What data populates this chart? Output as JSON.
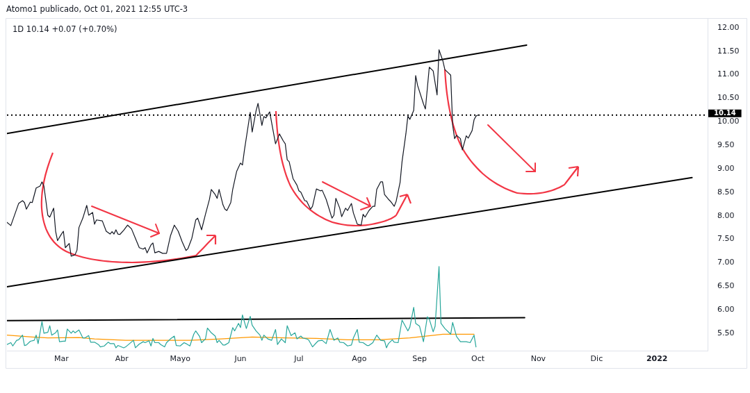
{
  "chart_data": {
    "type": "line",
    "title": "1D 10.14 +0.07 (+0.70%)",
    "annotations": [
      "Atomo1 publicado, Oct 01, 2021 12:55 UTC-3"
    ],
    "xlim": [
      "2021-02-01",
      "2022-01-27"
    ],
    "xticks": [
      {
        "value": "2021-03",
        "label": "Mar"
      },
      {
        "value": "2021-04",
        "label": "Abr"
      },
      {
        "value": "2021-05",
        "label": "Mayo"
      },
      {
        "value": "2021-06",
        "label": "Jun"
      },
      {
        "value": "2021-07",
        "label": "Jul"
      },
      {
        "value": "2021-08",
        "label": "Ago"
      },
      {
        "value": "2021-09",
        "label": "Sep"
      },
      {
        "value": "2021-10",
        "label": "Oct"
      },
      {
        "value": "2021-11",
        "label": "Nov"
      },
      {
        "value": "2021-12",
        "label": "Dic"
      },
      {
        "value": "2022-01",
        "label": "2022"
      }
    ],
    "ylim": [
      5.13,
      12.19
    ],
    "yticks": [
      {
        "value": 5.5,
        "label": "5.50"
      },
      {
        "value": 6,
        "label": "6.00"
      },
      {
        "value": 6.5,
        "label": "6.50"
      },
      {
        "value": 7,
        "label": "7.00"
      },
      {
        "value": 7.5,
        "label": "7.50"
      },
      {
        "value": 8,
        "label": "8.00"
      },
      {
        "value": 8.5,
        "label": "8.50"
      },
      {
        "value": 9,
        "label": "9.00"
      },
      {
        "value": 9.5,
        "label": "9.50"
      },
      {
        "value": 10,
        "label": "10.00"
      },
      {
        "value": 10.5,
        "label": "10.50"
      },
      {
        "value": 11,
        "label": "11.00"
      },
      {
        "value": 11.5,
        "label": "11.50"
      },
      {
        "value": 12,
        "label": "12.00"
      }
    ],
    "grid": false,
    "marker": "none",
    "ref_lines": [
      {
        "axis": "y",
        "value": 10.14,
        "label": "10.14",
        "color": "#000000",
        "line_style": "dotted"
      }
    ],
    "series": [
      {
        "color": "#26a69a",
        "x": [
          "2021-02-01",
          "2021-02-03",
          "2021-02-04",
          "2021-02-06",
          "2021-02-07",
          "2021-02-09",
          "2021-02-10",
          "2021-02-11",
          "2021-02-13",
          "2021-02-15",
          "2021-02-16",
          "2021-02-17",
          "2021-02-19",
          "2021-02-20",
          "2021-02-22",
          "2021-02-23",
          "2021-02-24",
          "2021-02-26",
          "2021-02-27",
          "2021-02-28",
          "2021-03-02",
          "2021-03-03",
          "2021-03-04",
          "2021-03-06",
          "2021-03-07",
          "2021-03-08",
          "2021-03-10",
          "2021-03-12",
          "2021-03-13",
          "2021-03-15",
          "2021-03-16",
          "2021-03-18",
          "2021-03-20",
          "2021-03-21",
          "2021-03-23",
          "2021-03-25",
          "2021-03-26",
          "2021-03-28",
          "2021-03-29",
          "2021-03-30",
          "2021-04-02",
          "2021-04-03",
          "2021-04-05",
          "2021-04-07",
          "2021-04-08",
          "2021-04-10",
          "2021-04-12",
          "2021-04-13",
          "2021-04-15",
          "2021-04-16",
          "2021-04-17",
          "2021-04-18",
          "2021-04-20",
          "2021-04-21",
          "2021-04-23",
          "2021-04-24",
          "2021-04-26",
          "2021-04-28",
          "2021-04-29",
          "2021-05-01",
          "2021-05-03",
          "2021-05-04",
          "2021-05-06",
          "2021-05-08",
          "2021-05-09",
          "2021-05-11",
          "2021-05-12",
          "2021-05-14",
          "2021-05-15",
          "2021-05-17",
          "2021-05-19",
          "2021-05-20",
          "2021-05-21",
          "2021-05-23",
          "2021-05-24",
          "2021-05-26",
          "2021-05-28",
          "2021-05-29",
          "2021-05-31",
          "2021-06-01",
          "2021-06-02",
          "2021-06-04",
          "2021-06-06",
          "2021-06-07",
          "2021-06-09",
          "2021-06-11",
          "2021-06-12",
          "2021-06-13",
          "2021-06-15",
          "2021-06-17",
          "2021-06-19",
          "2021-06-20",
          "2021-06-22",
          "2021-06-24",
          "2021-06-25",
          "2021-06-27",
          "2021-06-29",
          "2021-06-30",
          "2021-07-02",
          "2021-07-03",
          "2021-07-05",
          "2021-07-06",
          "2021-07-08",
          "2021-07-10",
          "2021-07-11",
          "2021-07-13",
          "2021-07-15",
          "2021-07-17",
          "2021-07-19",
          "2021-07-21",
          "2021-07-22",
          "2021-07-24",
          "2021-07-26",
          "2021-07-28",
          "2021-07-29",
          "2021-07-31",
          "2021-08-01",
          "2021-08-03",
          "2021-08-05",
          "2021-08-06",
          "2021-08-08",
          "2021-08-10",
          "2021-08-12",
          "2021-08-14",
          "2021-08-15",
          "2021-08-16",
          "2021-08-18",
          "2021-08-19",
          "2021-08-21",
          "2021-08-23",
          "2021-08-26",
          "2021-08-27",
          "2021-08-29",
          "2021-08-30",
          "2021-09-01",
          "2021-09-03",
          "2021-09-05",
          "2021-09-06",
          "2021-09-08",
          "2021-09-09",
          "2021-09-11",
          "2021-09-12",
          "2021-09-14",
          "2021-09-17",
          "2021-09-18",
          "2021-09-20",
          "2021-09-22",
          "2021-09-25",
          "2021-09-27",
          "2021-09-29",
          "2021-09-30"
        ],
        "values": [
          5.26,
          5.3,
          5.23,
          5.35,
          5.36,
          5.46,
          5.24,
          5.25,
          5.33,
          5.35,
          5.46,
          5.28,
          5.75,
          5.5,
          5.52,
          5.66,
          5.46,
          5.51,
          5.57,
          5.32,
          5.33,
          5.33,
          5.59,
          5.5,
          5.55,
          5.51,
          5.57,
          5.4,
          5.4,
          5.45,
          5.31,
          5.31,
          5.26,
          5.21,
          5.23,
          5.31,
          5.28,
          5.28,
          5.19,
          5.24,
          5.19,
          5.21,
          5.28,
          5.35,
          5.19,
          5.27,
          5.32,
          5.3,
          5.34,
          5.23,
          5.39,
          5.3,
          5.3,
          5.26,
          5.21,
          5.3,
          5.38,
          5.44,
          5.24,
          5.23,
          5.3,
          5.28,
          5.23,
          5.48,
          5.55,
          5.43,
          5.3,
          5.38,
          5.61,
          5.51,
          5.44,
          5.3,
          5.35,
          5.25,
          5.25,
          5.3,
          5.62,
          5.55,
          5.71,
          5.62,
          5.89,
          5.6,
          5.86,
          5.67,
          5.55,
          5.46,
          5.35,
          5.46,
          5.38,
          5.35,
          5.58,
          5.26,
          5.38,
          5.3,
          5.66,
          5.45,
          5.51,
          5.38,
          5.44,
          5.4,
          5.38,
          5.36,
          5.21,
          5.3,
          5.34,
          5.35,
          5.28,
          5.58,
          5.35,
          5.4,
          5.31,
          5.3,
          5.23,
          5.25,
          5.4,
          5.58,
          5.31,
          5.3,
          5.24,
          5.24,
          5.3,
          5.46,
          5.35,
          5.34,
          5.19,
          5.28,
          5.36,
          5.31,
          5.3,
          5.78,
          5.55,
          5.63,
          6.05,
          5.71,
          5.65,
          5.32,
          5.85,
          5.8,
          5.53,
          5.65,
          6.92,
          5.71,
          5.6,
          5.48,
          5.73,
          5.43,
          5.32,
          5.32,
          5.3,
          5.46,
          5.21
        ]
      },
      {
        "color": "#ff9800",
        "x": [
          "2021-02-01",
          "2021-02-14",
          "2021-02-22",
          "2021-03-10",
          "2021-03-18",
          "2021-04-03",
          "2021-04-20",
          "2021-05-06",
          "2021-05-22",
          "2021-06-07",
          "2021-06-24",
          "2021-07-10",
          "2021-07-26",
          "2021-08-11",
          "2021-08-27",
          "2021-09-09",
          "2021-09-13",
          "2021-09-29"
        ],
        "values": [
          5.46,
          5.42,
          5.4,
          5.41,
          5.38,
          5.35,
          5.35,
          5.35,
          5.38,
          5.42,
          5.4,
          5.39,
          5.36,
          5.36,
          5.4,
          5.46,
          5.48,
          5.48
        ]
      },
      {
        "color": "#131722",
        "x": [
          "2021-02-01",
          "2021-02-03",
          "2021-02-07",
          "2021-02-09",
          "2021-02-10",
          "2021-02-11",
          "2021-02-13",
          "2021-02-14",
          "2021-02-16",
          "2021-02-18",
          "2021-02-19",
          "2021-02-20",
          "2021-02-22",
          "2021-02-23",
          "2021-02-25",
          "2021-02-26",
          "2021-02-27",
          "2021-03-01",
          "2021-03-02",
          "2021-03-03",
          "2021-03-05",
          "2021-03-06",
          "2021-03-08",
          "2021-03-09",
          "2021-03-10",
          "2021-03-12",
          "2021-03-14",
          "2021-03-15",
          "2021-03-17",
          "2021-03-18",
          "2021-03-19",
          "2021-03-22",
          "2021-03-24",
          "2021-03-26",
          "2021-03-27",
          "2021-03-28",
          "2021-03-29",
          "2021-03-30",
          "2021-03-31",
          "2021-04-02",
          "2021-04-04",
          "2021-04-06",
          "2021-04-08",
          "2021-04-10",
          "2021-04-12",
          "2021-04-13",
          "2021-04-14",
          "2021-04-16",
          "2021-04-17",
          "2021-04-18",
          "2021-04-20",
          "2021-04-22",
          "2021-04-24",
          "2021-04-26",
          "2021-04-28",
          "2021-04-30",
          "2021-05-02",
          "2021-05-04",
          "2021-05-05",
          "2021-05-07",
          "2021-05-09",
          "2021-05-10",
          "2021-05-11",
          "2021-05-12",
          "2021-05-14",
          "2021-05-16",
          "2021-05-17",
          "2021-05-19",
          "2021-05-20",
          "2021-05-21",
          "2021-05-23",
          "2021-05-24",
          "2021-05-25",
          "2021-05-27",
          "2021-05-28",
          "2021-05-30",
          "2021-06-01",
          "2021-06-02",
          "2021-06-03",
          "2021-06-05",
          "2021-06-06",
          "2021-06-07",
          "2021-06-09",
          "2021-06-10",
          "2021-06-12",
          "2021-06-13",
          "2021-06-14",
          "2021-06-16",
          "2021-06-17",
          "2021-06-19",
          "2021-06-21",
          "2021-06-23",
          "2021-06-24",
          "2021-06-25",
          "2021-06-26",
          "2021-06-28",
          "2021-06-30",
          "2021-07-01",
          "2021-07-02",
          "2021-07-04",
          "2021-07-05",
          "2021-07-07",
          "2021-07-08",
          "2021-07-10",
          "2021-07-12",
          "2021-07-13",
          "2021-07-15",
          "2021-07-18",
          "2021-07-19",
          "2021-07-20",
          "2021-07-22",
          "2021-07-23",
          "2021-07-25",
          "2021-07-26",
          "2021-07-28",
          "2021-07-29",
          "2021-07-31",
          "2021-08-02",
          "2021-08-03",
          "2021-08-04",
          "2021-08-06",
          "2021-08-08",
          "2021-08-09",
          "2021-08-10",
          "2021-08-12",
          "2021-08-13",
          "2021-08-14",
          "2021-08-16",
          "2021-08-17",
          "2021-08-19",
          "2021-08-20",
          "2021-08-22",
          "2021-08-23",
          "2021-08-25",
          "2021-08-26",
          "2021-08-27",
          "2021-08-29",
          "2021-08-30",
          "2021-08-31",
          "2021-09-03",
          "2021-09-04",
          "2021-09-05",
          "2021-09-06",
          "2021-09-08",
          "2021-09-10",
          "2021-09-11",
          "2021-09-13",
          "2021-09-14",
          "2021-09-15",
          "2021-09-17",
          "2021-09-18",
          "2021-09-19",
          "2021-09-20",
          "2021-09-22",
          "2021-09-23",
          "2021-09-25",
          "2021-09-26",
          "2021-09-28",
          "2021-09-29",
          "2021-09-30",
          "2021-10-01"
        ],
        "values": [
          7.86,
          7.79,
          8.26,
          8.32,
          8.28,
          8.14,
          8.29,
          8.28,
          8.59,
          8.63,
          8.72,
          8.63,
          8.01,
          7.97,
          8.16,
          7.67,
          7.47,
          7.61,
          7.67,
          7.32,
          7.41,
          7.14,
          7.17,
          7.27,
          7.75,
          7.95,
          8.22,
          8.01,
          8.07,
          7.82,
          7.91,
          7.89,
          7.67,
          7.61,
          7.66,
          7.61,
          7.7,
          7.61,
          7.6,
          7.69,
          7.8,
          7.72,
          7.52,
          7.32,
          7.29,
          7.32,
          7.21,
          7.38,
          7.42,
          7.21,
          7.24,
          7.2,
          7.2,
          7.57,
          7.8,
          7.67,
          7.45,
          7.26,
          7.3,
          7.52,
          7.91,
          7.95,
          7.83,
          7.7,
          8.03,
          8.34,
          8.56,
          8.45,
          8.37,
          8.56,
          8.23,
          8.14,
          8.11,
          8.28,
          8.56,
          8.94,
          9.12,
          9.08,
          9.39,
          9.93,
          10.2,
          9.78,
          10.23,
          10.39,
          9.92,
          10.11,
          10.08,
          10.21,
          9.98,
          9.53,
          9.74,
          9.59,
          9.53,
          9.19,
          9.15,
          8.79,
          8.65,
          8.53,
          8.5,
          8.32,
          8.31,
          8.14,
          8.2,
          8.57,
          8.53,
          8.54,
          8.35,
          7.95,
          8.01,
          8.37,
          8.16,
          7.98,
          8.16,
          8.11,
          8.26,
          8.06,
          7.82,
          7.8,
          8.03,
          7.97,
          8.11,
          8.2,
          8.2,
          8.56,
          8.72,
          8.72,
          8.45,
          8.35,
          8.31,
          8.2,
          8.31,
          8.71,
          9.15,
          9.75,
          10.12,
          10.05,
          10.24,
          10.98,
          10.77,
          10.38,
          10.27,
          10.71,
          11.16,
          11.08,
          10.57,
          11.53,
          11.29,
          11.11,
          11.07,
          10.99,
          9.93,
          9.64,
          9.71,
          9.64,
          9.4,
          9.7,
          9.65,
          9.81,
          10.04,
          10.12,
          10.14
        ]
      },
      {
        "color": "#000000",
        "x": [
          "2021-02-01",
          "2021-10-26"
        ],
        "values": [
          9.75,
          11.63
        ]
      },
      {
        "color": "#000000",
        "x": [
          "2021-02-01",
          "2022-01-19"
        ],
        "values": [
          6.49,
          8.81
        ]
      },
      {
        "color": "#000000",
        "x": [
          "2021-02-01",
          "2021-10-25"
        ],
        "values": [
          5.77,
          5.83
        ]
      }
    ]
  }
}
